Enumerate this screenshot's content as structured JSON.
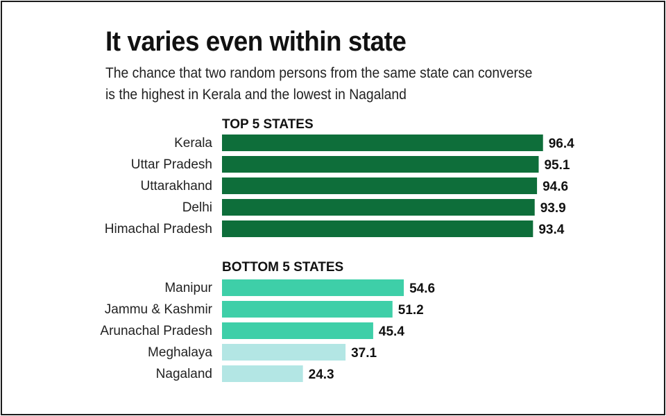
{
  "title": "It varies even within state",
  "subtitle_lines": [
    "The chance that two random persons from the same state can converse",
    "is the highest in Kerala and the lowest in Nagaland"
  ],
  "chart_data": {
    "type": "bar",
    "orientation": "horizontal",
    "xlim": [
      0,
      100
    ],
    "grid": false,
    "groups": [
      {
        "heading": "TOP 5 STATES",
        "categories": [
          "Kerala",
          "Uttar Pradesh",
          "Uttarakhand",
          "Delhi",
          "Himachal Pradesh"
        ],
        "values": [
          96.4,
          95.1,
          94.6,
          93.9,
          93.4
        ],
        "labels": [
          "96.4",
          "95.1",
          "94.6",
          "93.9",
          "93.4"
        ],
        "colors": [
          "#0e6e3a",
          "#0e6e3a",
          "#0e6e3a",
          "#0e6e3a",
          "#0e6e3a"
        ]
      },
      {
        "heading": "BOTTOM 5 STATES",
        "categories": [
          "Manipur",
          "Jammu & Kashmir",
          "Arunachal Pradesh",
          "Meghalaya",
          "Nagaland"
        ],
        "values": [
          54.6,
          51.2,
          45.4,
          37.1,
          24.3
        ],
        "labels": [
          "54.6",
          "51.2",
          "45.4",
          "37.1",
          "24.3"
        ],
        "colors": [
          "#3ecfa8",
          "#3ecfa8",
          "#3ecfa8",
          "#b3e6e4",
          "#b3e6e4"
        ]
      }
    ]
  }
}
